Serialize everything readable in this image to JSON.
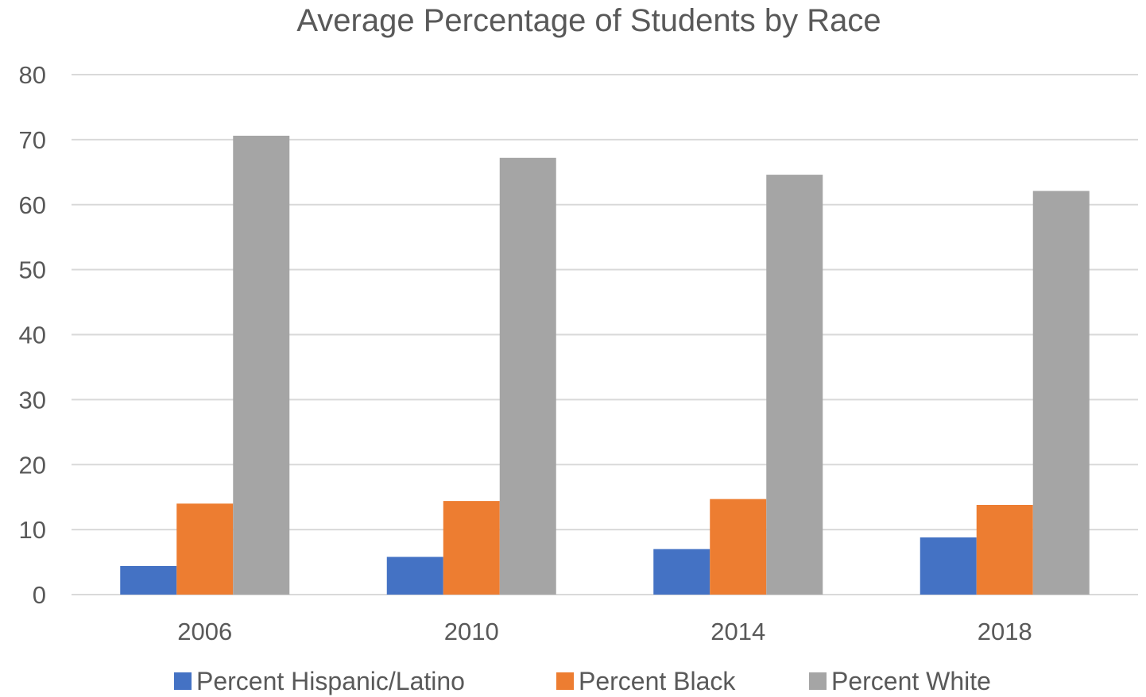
{
  "chart_data": {
    "type": "bar",
    "title": "Average Percentage of Students by Race",
    "xlabel": "",
    "ylabel": "",
    "categories": [
      "2006",
      "2010",
      "2014",
      "2018"
    ],
    "series": [
      {
        "name": "Percent Hispanic/Latino",
        "color": "#4472C4",
        "values": [
          4.4,
          5.8,
          7.0,
          8.8
        ]
      },
      {
        "name": "Percent Black",
        "color": "#ED7D31",
        "values": [
          14.0,
          14.4,
          14.7,
          13.8
        ]
      },
      {
        "name": "Percent White",
        "color": "#A5A5A5",
        "values": [
          70.6,
          67.2,
          64.6,
          62.1
        ]
      }
    ],
    "ylim": [
      0,
      80
    ],
    "yticks": [
      "0",
      "10",
      "20",
      "30",
      "40",
      "50",
      "60",
      "70",
      "80"
    ],
    "grid": true,
    "legend_position": "bottom",
    "gridline_color": "#D9D9D9"
  }
}
